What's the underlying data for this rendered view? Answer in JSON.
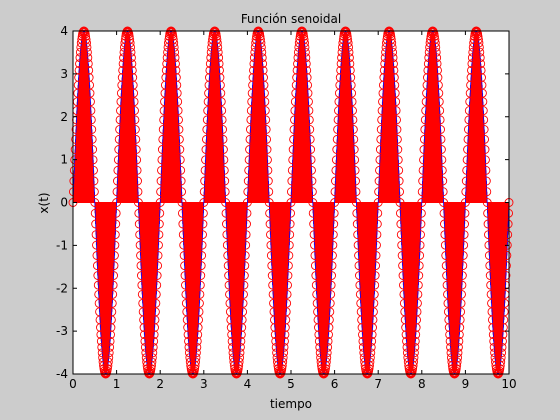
{
  "chart_data": {
    "type": "line",
    "title": "Función senoidal",
    "xlabel": "tiempo",
    "ylabel": "x(t)",
    "xlim": [
      0,
      10
    ],
    "ylim": [
      -4,
      4
    ],
    "xticks": [
      "0",
      "1",
      "2",
      "3",
      "4",
      "5",
      "6",
      "7",
      "8",
      "9",
      "10"
    ],
    "yticks": [
      "-4",
      "-3",
      "-2",
      "-1",
      "0",
      "1",
      "2",
      "3",
      "4"
    ],
    "grid": false,
    "signal": {
      "function": "x(t) = 4 sin(2π t)",
      "amplitude": 4,
      "frequency": 1,
      "t_start": 0,
      "t_end": 10,
      "t_step": 0.01
    },
    "series": [
      {
        "style": "stem",
        "color": "#ff0000",
        "marker": "circle",
        "marker_color": "#ff0000"
      },
      {
        "style": "line",
        "color": "#0000ff"
      }
    ]
  }
}
